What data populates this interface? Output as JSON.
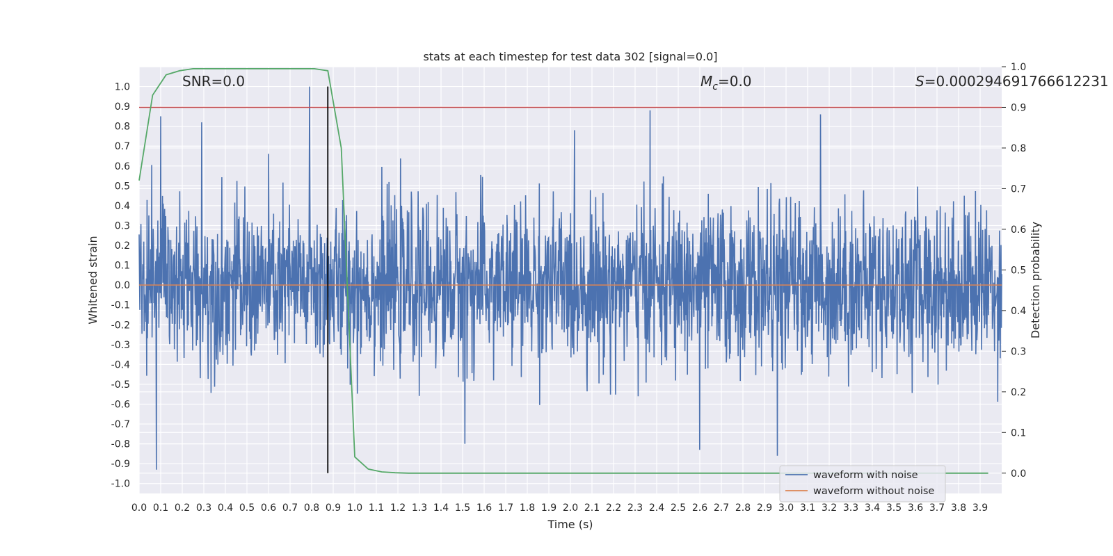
{
  "chart_data": {
    "type": "line",
    "title": "stats at each timestep for test data 302 [signal=0.0]",
    "xlabel": "Time (s)",
    "ylabel": "Whitened strain",
    "y2label": "Detection probability",
    "xlim": [
      0.0,
      4.0
    ],
    "ylim": [
      -1.05,
      1.1
    ],
    "y2lim": [
      -0.05,
      1.0
    ],
    "x_ticks": [
      "0.0",
      "0.1",
      "0.2",
      "0.3",
      "0.4",
      "0.5",
      "0.6",
      "0.7",
      "0.8",
      "0.9",
      "1.0",
      "1.1",
      "1.2",
      "1.3",
      "1.4",
      "1.5",
      "1.6",
      "1.7",
      "1.8",
      "1.9",
      "2.0",
      "2.1",
      "2.2",
      "2.3",
      "2.4",
      "2.5",
      "2.6",
      "2.7",
      "2.8",
      "2.9",
      "3.0",
      "3.1",
      "3.2",
      "3.3",
      "3.4",
      "3.5",
      "3.6",
      "3.7",
      "3.8",
      "3.9"
    ],
    "y_ticks": [
      "1.0",
      "0.9",
      "0.8",
      "0.7",
      "0.6",
      "0.5",
      "0.4",
      "0.3",
      "0.2",
      "0.1",
      "0.0",
      "-0.1",
      "-0.2",
      "-0.3",
      "-0.4",
      "-0.5",
      "-0.6",
      "-0.7",
      "-0.8",
      "-0.9",
      "-1.0"
    ],
    "y2_ticks": [
      "1.0",
      "0.9",
      "0.8",
      "0.7",
      "0.6",
      "0.5",
      "0.4",
      "0.3",
      "0.2",
      "0.1",
      "0.0"
    ],
    "grid": true,
    "legend_position": "bottom-right",
    "annotations": {
      "snr": "SNR=0.0",
      "mc_symbol": "M",
      "mc_sub": "c",
      "mc_value": "=0.0",
      "s_symbol": "S",
      "s_value": "=0.000294691766612231"
    },
    "series": [
      {
        "name": "waveform with noise",
        "axis": "left",
        "color": "#4c72b0",
        "description_range": [
          -0.93,
          1.0
        ],
        "spikes": [
          {
            "x": 0.08,
            "y": -0.93
          },
          {
            "x": 0.1,
            "y": 0.85
          },
          {
            "x": 0.29,
            "y": 0.82
          },
          {
            "x": 0.79,
            "y": 1.0
          },
          {
            "x": 2.37,
            "y": 0.88
          },
          {
            "x": 3.16,
            "y": 0.86
          },
          {
            "x": 2.96,
            "y": -0.86
          },
          {
            "x": 2.6,
            "y": -0.83
          },
          {
            "x": 1.51,
            "y": -0.8
          }
        ]
      },
      {
        "name": "waveform without noise",
        "axis": "left",
        "color": "#dd8452",
        "x": [
          0.0,
          4.0
        ],
        "y": [
          0.0,
          0.0
        ]
      },
      {
        "axis": "right",
        "color": "#55a868",
        "x": [
          0.0,
          0.0625,
          0.125,
          0.1875,
          0.25,
          0.3125,
          0.375,
          0.4375,
          0.5,
          0.5625,
          0.625,
          0.6875,
          0.75,
          0.8125,
          0.875,
          0.9375,
          1.0,
          1.0625,
          1.125,
          1.1875,
          1.25,
          1.5,
          2.0,
          2.5,
          3.0,
          3.5,
          3.9375
        ],
        "y": [
          0.72,
          0.93,
          0.98,
          0.99,
          0.995,
          0.995,
          0.995,
          0.995,
          0.995,
          0.995,
          0.995,
          0.995,
          0.995,
          0.995,
          0.99,
          0.8,
          0.04,
          0.01,
          0.003,
          0.001,
          0.0,
          0.0,
          0.0,
          0.0,
          0.0,
          0.0,
          0.0
        ]
      }
    ],
    "threshold_line": {
      "axis": "right",
      "y": 0.9,
      "color": "#c44e52"
    },
    "marker_line": {
      "x": 0.875,
      "color": "#000000"
    }
  }
}
